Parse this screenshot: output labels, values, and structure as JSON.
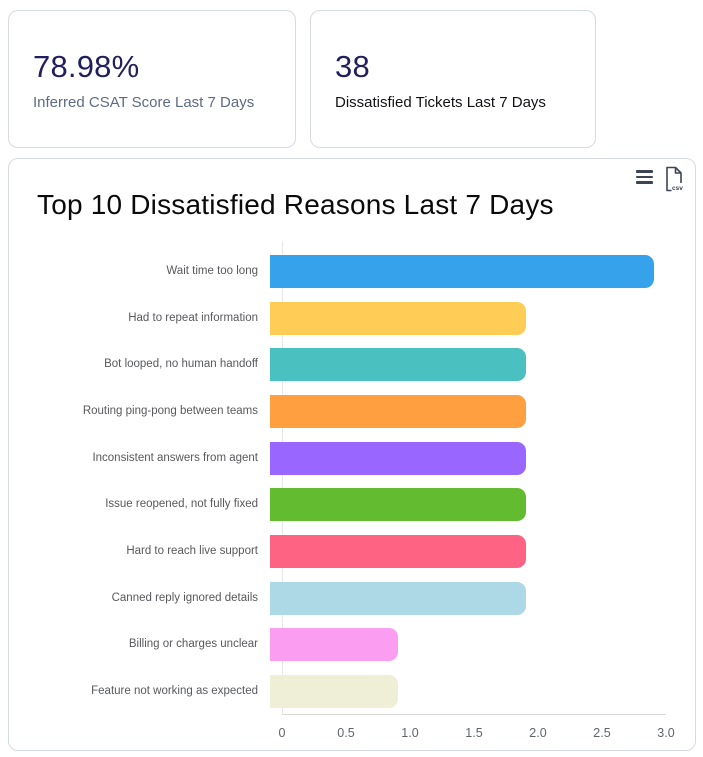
{
  "kpi_cards": [
    {
      "value": "78.98%",
      "label": "Inferred CSAT Score Last 7 Days"
    },
    {
      "value": "38",
      "label": "Dissatisfied Tickets Last 7 Days"
    }
  ],
  "chart_card": {
    "toolbar": {
      "csv_label": "csv"
    }
  },
  "chart_data": {
    "type": "bar",
    "orientation": "horizontal",
    "title": "Top 10 Dissatisfied Reasons Last 7 Days",
    "categories": [
      "Wait time too long",
      "Had to repeat information",
      "Bot looped, no human handoff",
      "Routing ping-pong between teams",
      "Inconsistent answers from agent",
      "Issue reopened, not fully fixed",
      "Hard to reach live support",
      "Canned reply ignored details",
      "Billing or charges unclear",
      "Feature not working as expected"
    ],
    "values": [
      3,
      2,
      2,
      2,
      2,
      2,
      2,
      2,
      1,
      1
    ],
    "bar_colors": [
      "#36a2eb",
      "#ffcd56",
      "#4bc0c0",
      "#ff9f40",
      "#9966ff",
      "#63bb2f",
      "#ff6384",
      "#add8e6",
      "#fb9ef2",
      "#efeed7"
    ],
    "xlim": [
      0,
      3
    ],
    "x_ticks": [
      "0",
      "0.5",
      "1.0",
      "1.5",
      "2.0",
      "2.5",
      "3.0"
    ],
    "xlabel": "",
    "ylabel": "",
    "legend": "none",
    "grid": false
  },
  "colors": {
    "kpi_value": "#221f5e",
    "kpi_label_muted": "#5d6b84",
    "kpi_label_dark": "#111216",
    "icon": "#3e4456"
  }
}
